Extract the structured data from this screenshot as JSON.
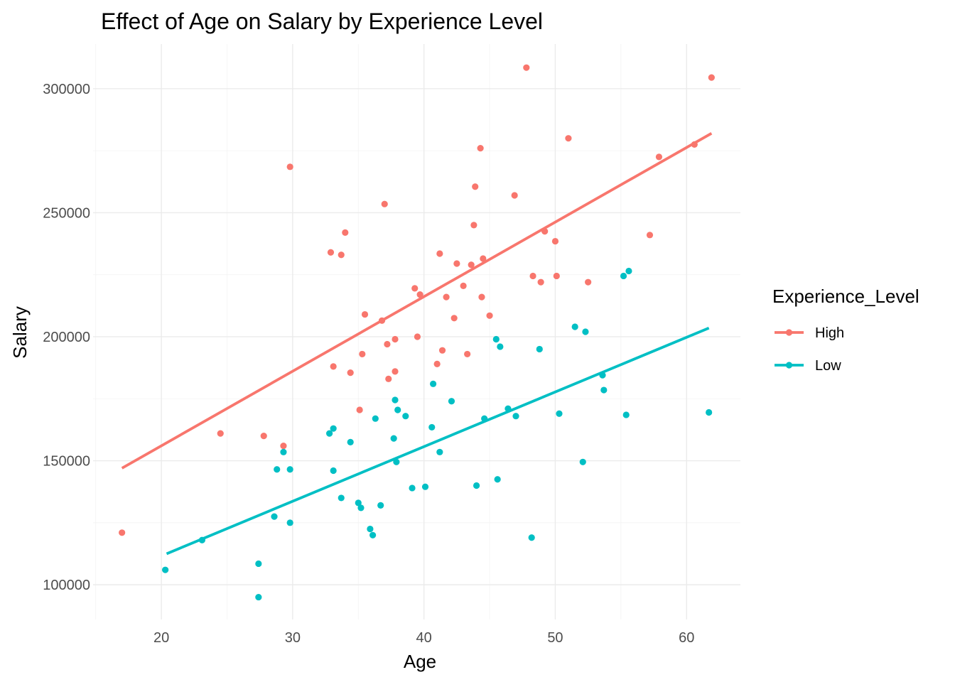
{
  "chart_data": {
    "type": "scatter",
    "title": "Effect of Age on Salary by Experience Level",
    "xlabel": "Age",
    "ylabel": "Salary",
    "xlim": [
      14.8,
      64.1
    ],
    "ylim": [
      86000,
      318000
    ],
    "x_ticks": [
      20,
      30,
      40,
      50,
      60
    ],
    "y_ticks": [
      100000,
      150000,
      200000,
      250000,
      300000
    ],
    "x_minor_ticks": [
      15,
      25,
      35,
      45,
      55
    ],
    "y_minor_ticks": [
      125000,
      175000,
      225000,
      275000
    ],
    "grid": true,
    "legend": {
      "title": "Experience_Level",
      "position": "right"
    },
    "series": [
      {
        "name": "High",
        "color": "#F8766D",
        "trend": {
          "x": [
            17,
            61.9
          ],
          "y": [
            147000,
            282000
          ]
        },
        "points": [
          [
            17,
            121000
          ],
          [
            24.5,
            161000
          ],
          [
            27.8,
            160000
          ],
          [
            29.3,
            156000
          ],
          [
            29.8,
            268500
          ],
          [
            32.9,
            234000
          ],
          [
            33.1,
            188000
          ],
          [
            33.7,
            233000
          ],
          [
            34.0,
            242000
          ],
          [
            34.4,
            185500
          ],
          [
            35.1,
            170500
          ],
          [
            35.3,
            193000
          ],
          [
            35.5,
            209000
          ],
          [
            36.8,
            206500
          ],
          [
            37.0,
            253500
          ],
          [
            37.2,
            197000
          ],
          [
            37.3,
            183000
          ],
          [
            37.8,
            199000
          ],
          [
            37.8,
            186000
          ],
          [
            39.3,
            219500
          ],
          [
            39.5,
            200000
          ],
          [
            39.7,
            217000
          ],
          [
            41.0,
            189000
          ],
          [
            41.2,
            233500
          ],
          [
            41.4,
            194500
          ],
          [
            41.7,
            216000
          ],
          [
            42.3,
            207500
          ],
          [
            42.5,
            229500
          ],
          [
            43.0,
            220500
          ],
          [
            43.3,
            193000
          ],
          [
            43.6,
            229000
          ],
          [
            43.8,
            245000
          ],
          [
            43.9,
            260500
          ],
          [
            44.3,
            276000
          ],
          [
            44.4,
            216000
          ],
          [
            44.5,
            231500
          ],
          [
            45.0,
            208500
          ],
          [
            46.9,
            257000
          ],
          [
            47.8,
            308500
          ],
          [
            48.3,
            224500
          ],
          [
            48.9,
            222000
          ],
          [
            49.2,
            242500
          ],
          [
            50.0,
            238500
          ],
          [
            50.1,
            224500
          ],
          [
            51.0,
            280000
          ],
          [
            52.5,
            222000
          ],
          [
            57.2,
            241000
          ],
          [
            57.9,
            272500
          ],
          [
            60.6,
            277500
          ],
          [
            61.9,
            304500
          ]
        ]
      },
      {
        "name": "Low",
        "color": "#00BFC4",
        "trend": {
          "x": [
            20.4,
            61.7
          ],
          "y": [
            112500,
            203500
          ]
        },
        "points": [
          [
            20.3,
            106000
          ],
          [
            23.1,
            118000
          ],
          [
            27.4,
            108500
          ],
          [
            27.4,
            95000
          ],
          [
            28.6,
            127500
          ],
          [
            28.8,
            146500
          ],
          [
            29.3,
            153500
          ],
          [
            29.8,
            146500
          ],
          [
            29.8,
            125000
          ],
          [
            32.8,
            161000
          ],
          [
            33.1,
            146000
          ],
          [
            33.1,
            163000
          ],
          [
            33.7,
            135000
          ],
          [
            34.4,
            157500
          ],
          [
            35.0,
            133000
          ],
          [
            35.2,
            131000
          ],
          [
            35.9,
            122500
          ],
          [
            36.1,
            120000
          ],
          [
            36.3,
            167000
          ],
          [
            36.7,
            132000
          ],
          [
            37.7,
            159000
          ],
          [
            37.8,
            174500
          ],
          [
            37.9,
            149500
          ],
          [
            38.0,
            170500
          ],
          [
            38.6,
            168000
          ],
          [
            39.1,
            139000
          ],
          [
            40.1,
            139500
          ],
          [
            40.6,
            163500
          ],
          [
            40.7,
            181000
          ],
          [
            41.2,
            153500
          ],
          [
            42.1,
            174000
          ],
          [
            44.0,
            140000
          ],
          [
            44.6,
            167000
          ],
          [
            45.5,
            199000
          ],
          [
            45.6,
            142500
          ],
          [
            45.8,
            196000
          ],
          [
            46.4,
            171000
          ],
          [
            47.0,
            168000
          ],
          [
            48.2,
            119000
          ],
          [
            48.8,
            195000
          ],
          [
            50.3,
            169000
          ],
          [
            51.5,
            204000
          ],
          [
            52.1,
            149500
          ],
          [
            52.3,
            202000
          ],
          [
            53.6,
            184500
          ],
          [
            53.7,
            178500
          ],
          [
            55.2,
            224500
          ],
          [
            55.4,
            168500
          ],
          [
            55.6,
            226500
          ],
          [
            61.7,
            169500
          ]
        ]
      }
    ]
  }
}
